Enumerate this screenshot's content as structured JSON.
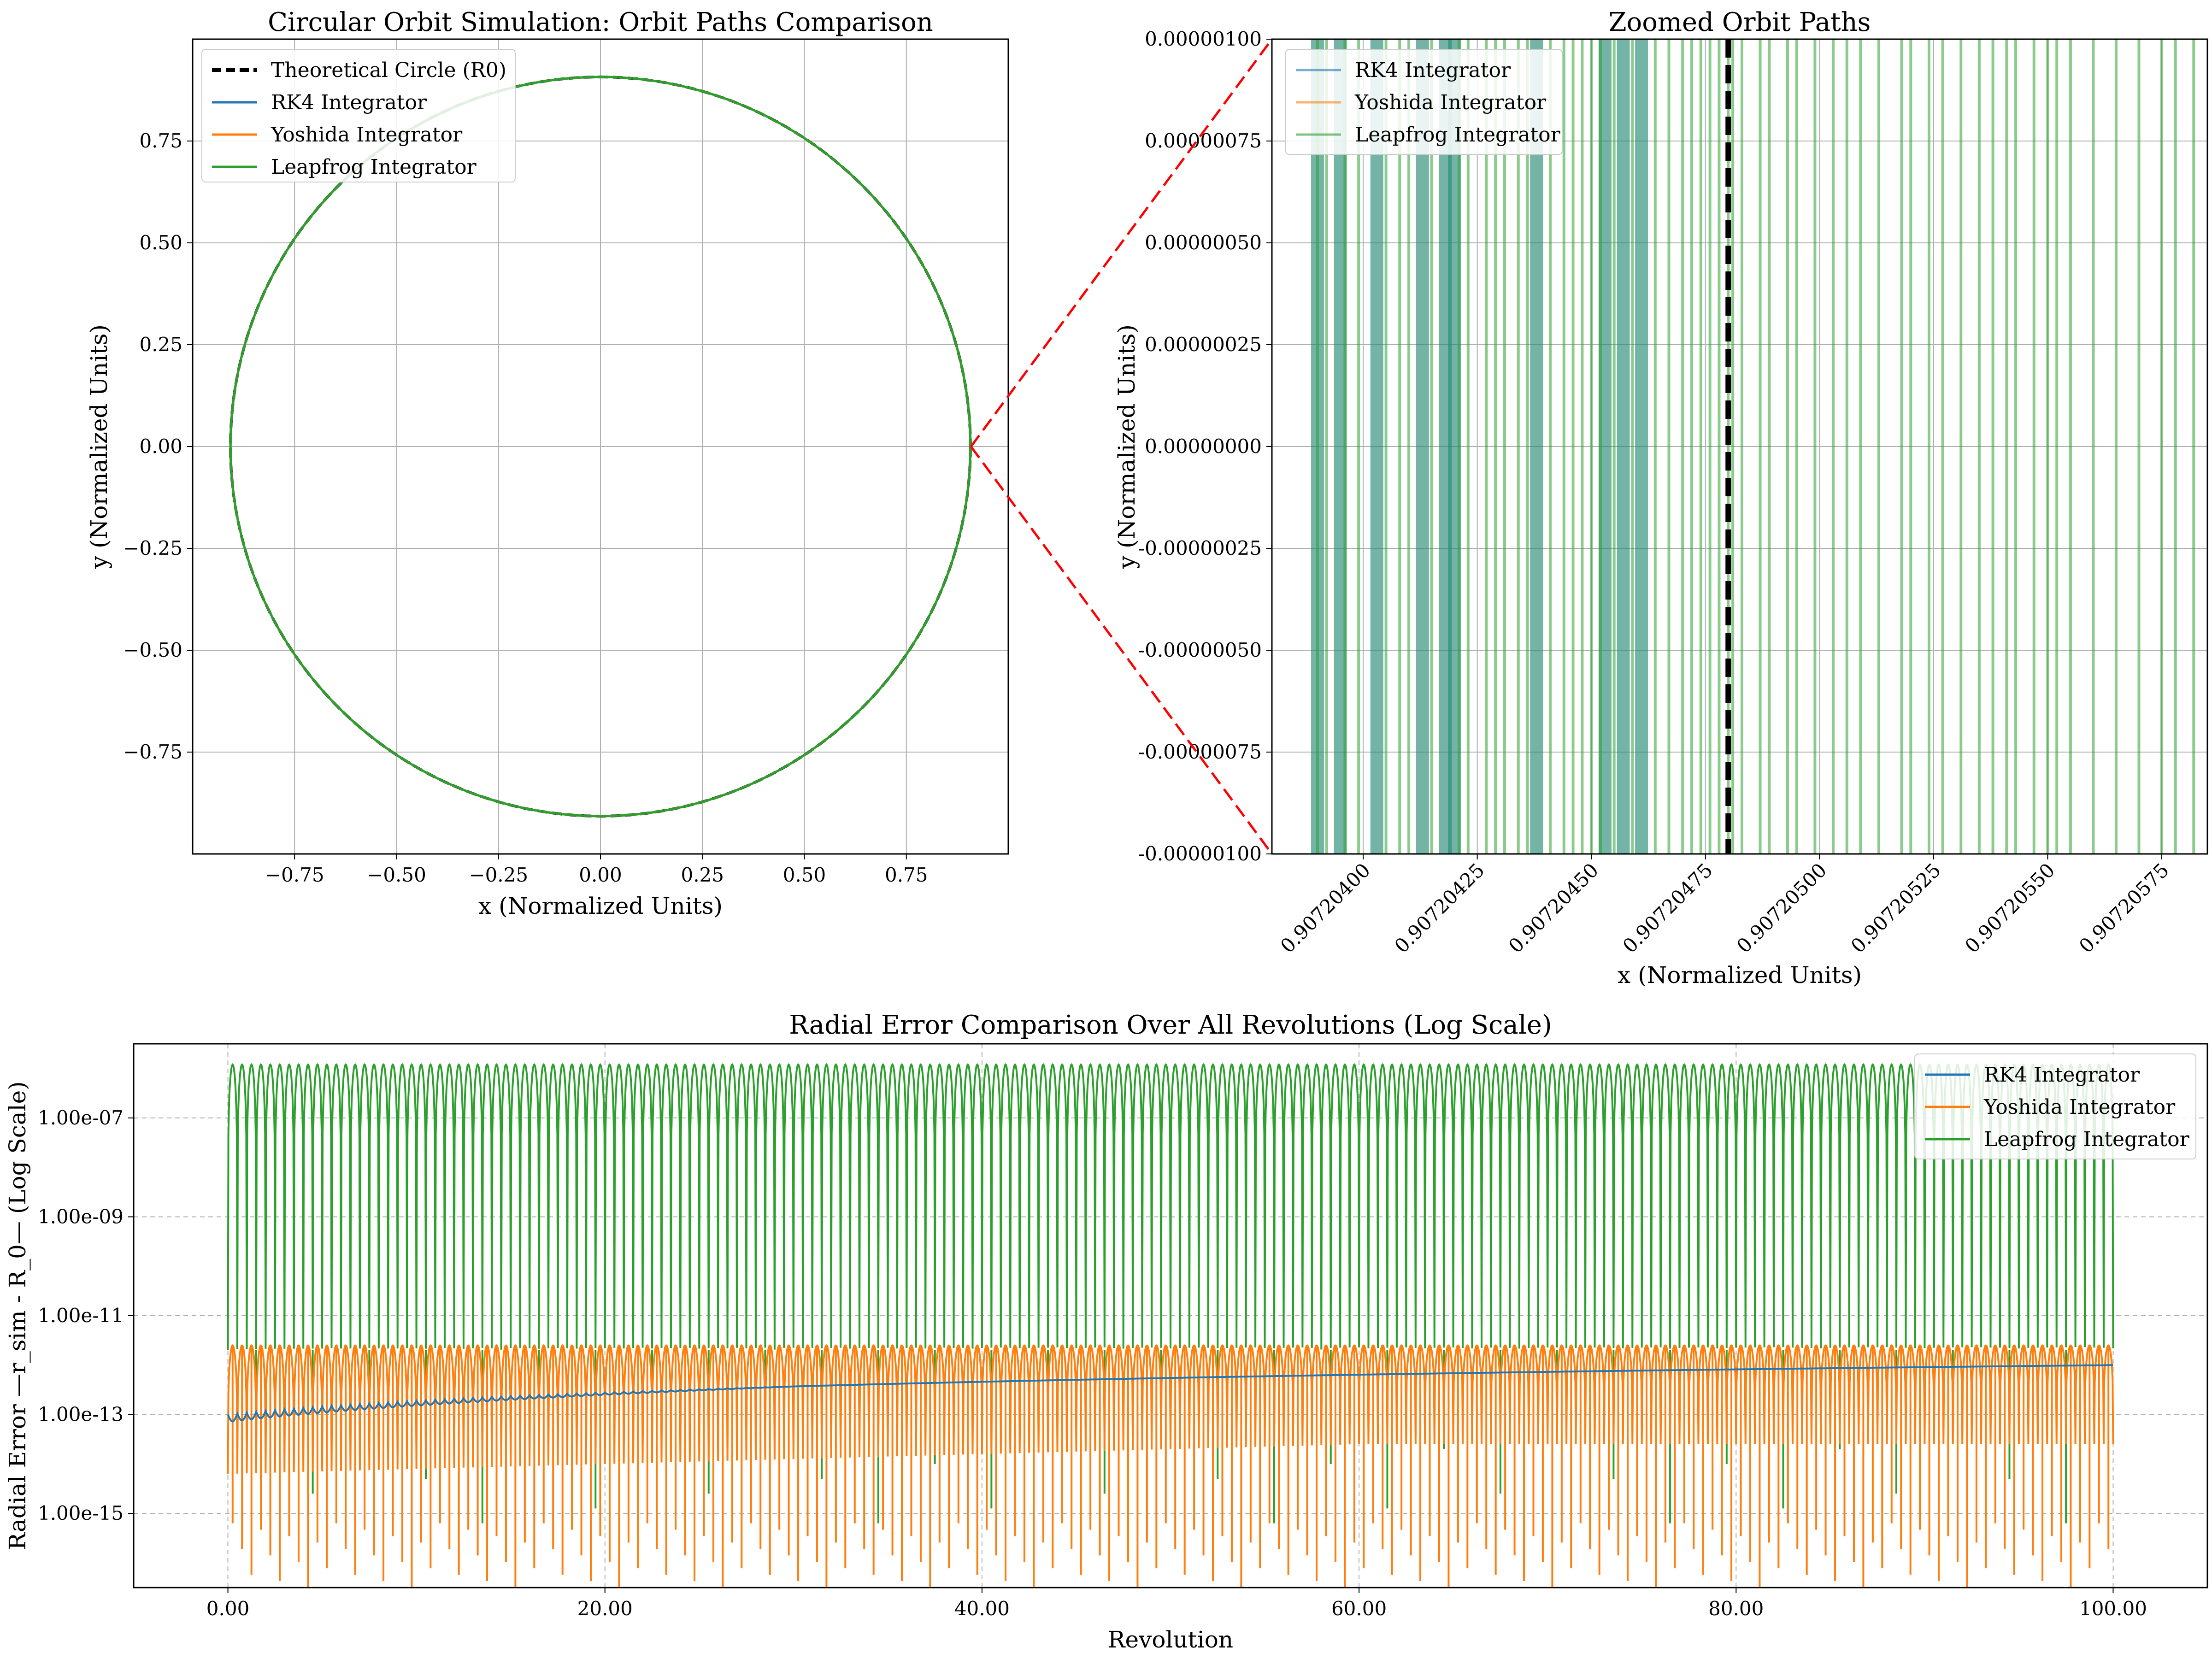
{
  "chart_data": [
    {
      "type": "line",
      "title": "Circular Orbit Simulation: Orbit Paths Comparison",
      "xlabel": "x (Normalized Units)",
      "ylabel": "y (Normalized Units)",
      "xlim": [
        -1.0,
        1.0
      ],
      "ylim": [
        -1.0,
        1.0
      ],
      "xticks": [
        -0.75,
        -0.5,
        -0.25,
        0.0,
        0.25,
        0.5,
        0.75
      ],
      "yticks": [
        -0.75,
        -0.5,
        -0.25,
        0.0,
        0.25,
        0.5,
        0.75
      ],
      "xtick_labels": [
        "−0.75",
        "−0.50",
        "−0.25",
        "0.00",
        "0.25",
        "0.50",
        "0.75"
      ],
      "ytick_labels": [
        "−0.75",
        "−0.50",
        "−0.25",
        "0.00",
        "0.25",
        "0.50",
        "0.75"
      ],
      "grid": true,
      "legend": "top-left",
      "orbit_radius": 0.9072,
      "series": [
        {
          "name": "Theoretical Circle (R0)",
          "color": "#000000",
          "style": "dashed"
        },
        {
          "name": "RK4 Integrator",
          "color": "#1f77b4",
          "style": "solid"
        },
        {
          "name": "Yoshida Integrator",
          "color": "#ff7f0e",
          "style": "solid"
        },
        {
          "name": "Leapfrog Integrator",
          "color": "#2ca02c",
          "style": "solid"
        }
      ]
    },
    {
      "type": "line",
      "title": "Zoomed Orbit Paths",
      "xlabel": "x (Normalized Units)",
      "ylabel": "y (Normalized Units)",
      "xlim": [
        0.9072038,
        0.90720585
      ],
      "ylim": [
        -1e-06,
        1e-06
      ],
      "xticks": [
        0.907204,
        0.90720425,
        0.9072045,
        0.90720475,
        0.907205,
        0.90720525,
        0.9072055,
        0.90720575
      ],
      "xtick_labels": [
        "0.90720400",
        "0.90720425",
        "0.90720450",
        "0.90720475",
        "0.90720500",
        "0.90720525",
        "0.90720550",
        "0.90720575"
      ],
      "yticks": [
        1e-06,
        7.5e-07,
        5e-07,
        2.5e-07,
        0.0,
        -2.5e-07,
        -5e-07,
        -7.5e-07,
        -1e-06
      ],
      "ytick_labels": [
        "0.00000100",
        "0.00000075",
        "0.00000050",
        "0.00000025",
        "0.00000000",
        "-0.00000025",
        "-0.00000050",
        "-0.00000075",
        "-0.00000100"
      ],
      "grid": true,
      "legend": "top-left",
      "theoretical_x": 0.9072048,
      "series": [
        {
          "name": "RK4 Integrator",
          "color": "#1f77b4"
        },
        {
          "name": "Yoshida Integrator",
          "color": "#ff7f0e"
        },
        {
          "name": "Leapfrog Integrator",
          "color": "#2ca02c"
        }
      ],
      "crossings": {
        "rk4_yoshida_bands": [
          0.9072039,
          0.90720395,
          0.90720403,
          0.90720413,
          0.90720418,
          0.9072042,
          0.90720438,
          0.90720453,
          0.90720457,
          0.90720461
        ],
        "leapfrog": [
          0.9072039,
          0.90720392,
          0.90720396,
          0.90720399,
          0.90720405,
          0.90720408,
          0.9072041,
          0.90720415,
          0.90720421,
          0.90720423,
          0.90720427,
          0.90720429,
          0.90720431,
          0.90720434,
          0.90720436,
          0.90720441,
          0.90720444,
          0.90720446,
          0.90720448,
          0.9072045,
          0.90720452,
          0.90720455,
          0.90720459,
          0.90720464,
          0.90720467,
          0.9072047,
          0.90720472,
          0.90720474,
          0.90720476,
          0.90720478,
          0.9072048,
          0.90720481,
          0.90720483,
          0.90720487,
          0.90720489,
          0.90720493,
          0.90720495,
          0.90720499,
          0.90720503,
          0.90720506,
          0.90720509,
          0.90720513,
          0.90720518,
          0.9072052,
          0.90720524,
          0.90720527,
          0.90720531,
          0.90720535,
          0.90720538,
          0.90720541,
          0.90720543,
          0.90720547,
          0.9072055,
          0.90720552,
          0.90720555,
          0.9072056,
          0.90720565,
          0.9072057,
          0.90720575,
          0.90720578,
          0.90720582
        ]
      }
    },
    {
      "type": "line",
      "title": "Radial Error Comparison Over All Revolutions (Log Scale)",
      "xlabel": "Revolution",
      "ylabel": "Radial Error —r_sim - R_0— (Log Scale)",
      "xlim": [
        -5,
        105
      ],
      "ylim_log10": [
        -16.5,
        -5.5
      ],
      "xticks": [
        0,
        20,
        40,
        60,
        80,
        100
      ],
      "xtick_labels": [
        "0.00",
        "20.00",
        "40.00",
        "60.00",
        "80.00",
        "100.00"
      ],
      "yticks_log10": [
        -15,
        -13,
        -11,
        -9,
        -7
      ],
      "ytick_labels": [
        "1.00e-15",
        "1.00e-13",
        "1.00e-11",
        "1.00e-09",
        "1.00e-07"
      ],
      "grid": true,
      "legend": "top-right",
      "revolutions": 100,
      "series": [
        {
          "name": "RK4 Integrator",
          "color": "#1f77b4",
          "start_error": 1e-13,
          "end_error": 1e-12
        },
        {
          "name": "Yoshida Integrator",
          "color": "#ff7f0e",
          "peak_error": 2.5e-12,
          "min_error": 1e-16
        },
        {
          "name": "Leapfrog Integrator",
          "color": "#2ca02c",
          "peak_error": 1.2e-06,
          "min_error": 2e-12
        }
      ]
    }
  ]
}
